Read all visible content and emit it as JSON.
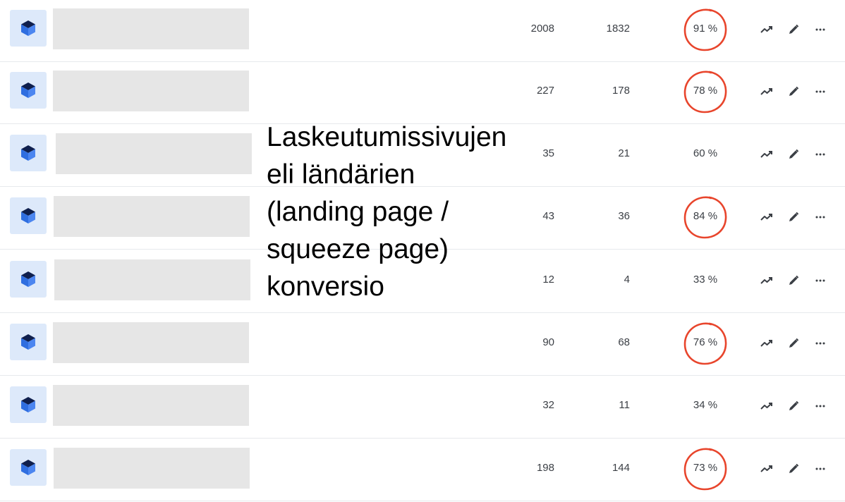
{
  "overlay_text": "Laskeutumissivujen\neli ländärien\n(landing page /\nsqueeze page)\nkonversio",
  "colors": {
    "ring": "#e8452c",
    "thumb_bg": "#dde9fa",
    "cube_top": "#0f1f4d",
    "cube_side": "#2f6ee0",
    "placeholder": "#e6e6e6"
  },
  "icons": {
    "item": "cube-icon",
    "stats": "trend-up-icon",
    "edit": "pencil-icon",
    "more": "more-horizontal-icon"
  },
  "rows": [
    {
      "visits": "2008",
      "conversions": "1832",
      "rate": "91 %",
      "rate_value": 0.91,
      "ring": true
    },
    {
      "visits": "227",
      "conversions": "178",
      "rate": "78 %",
      "rate_value": 0.78,
      "ring": true
    },
    {
      "visits": "35",
      "conversions": "21",
      "rate": "60 %",
      "rate_value": 0.6,
      "ring": false
    },
    {
      "visits": "43",
      "conversions": "36",
      "rate": "84 %",
      "rate_value": 0.84,
      "ring": true
    },
    {
      "visits": "12",
      "conversions": "4",
      "rate": "33 %",
      "rate_value": 0.33,
      "ring": false
    },
    {
      "visits": "90",
      "conversions": "68",
      "rate": "76 %",
      "rate_value": 0.76,
      "ring": true
    },
    {
      "visits": "32",
      "conversions": "11",
      "rate": "34 %",
      "rate_value": 0.34,
      "ring": false
    },
    {
      "visits": "198",
      "conversions": "144",
      "rate": "73 %",
      "rate_value": 0.73,
      "ring": true
    }
  ]
}
